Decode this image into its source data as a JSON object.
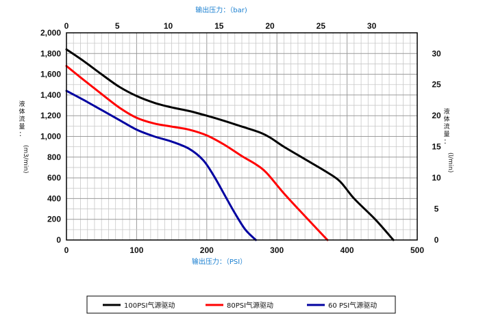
{
  "chart_data": {
    "type": "line",
    "title_top": "输出压力：（bar)",
    "xlabel": "输出压力：（PSI）",
    "ylabel_left": [
      "液",
      "体",
      "流",
      "量",
      "：",
      "(m3/min)"
    ],
    "ylabel_right": [
      "液",
      "体",
      "流",
      "量",
      "：",
      "(l/min)"
    ],
    "x_primary": {
      "unit": "PSI",
      "lim": [
        0,
        500
      ],
      "ticks": [
        "0",
        "100",
        "200",
        "300",
        "400",
        "500"
      ],
      "tick_values": [
        0,
        100,
        200,
        300,
        400,
        500
      ]
    },
    "x_secondary": {
      "unit": "bar",
      "lim": [
        0,
        34.47
      ],
      "ticks": [
        "0",
        "5",
        "10",
        "15",
        "20",
        "25",
        "30"
      ],
      "tick_values": [
        0,
        5,
        10,
        15,
        20,
        25,
        30
      ]
    },
    "y_primary": {
      "lim": [
        0,
        2000
      ],
      "ticks": [
        "0",
        "200",
        "400",
        "600",
        "800",
        "1,000",
        "1,200",
        "1,400",
        "1,600",
        "1,800",
        "2,000"
      ],
      "tick_values": [
        0,
        200,
        400,
        600,
        800,
        1000,
        1200,
        1400,
        1600,
        1800,
        2000
      ]
    },
    "y_secondary": {
      "lim": [
        0,
        33.33
      ],
      "ticks": [
        "0",
        "5",
        "10",
        "15",
        "20",
        "25",
        "30"
      ],
      "tick_values": [
        0,
        5,
        10,
        15,
        20,
        25,
        30
      ]
    },
    "grid": true,
    "legend_position": "bottom",
    "series": [
      {
        "name": "100PSI气源驱动",
        "color": "#000000",
        "x": [
          0,
          25,
          50,
          75,
          100,
          125,
          150,
          175,
          200,
          225,
          250,
          275,
          290,
          310,
          340,
          370,
          390,
          410,
          440,
          466
        ],
        "y": [
          1840,
          1725,
          1600,
          1480,
          1390,
          1325,
          1280,
          1245,
          1200,
          1150,
          1095,
          1040,
          990,
          900,
          780,
          660,
          565,
          400,
          200,
          0
        ]
      },
      {
        "name": "80PSI气源驱动",
        "color": "#ff0000",
        "x": [
          0,
          20,
          50,
          75,
          100,
          125,
          150,
          175,
          200,
          225,
          250,
          270,
          285,
          310,
          340,
          372
        ],
        "y": [
          1680,
          1570,
          1410,
          1280,
          1180,
          1125,
          1095,
          1065,
          1010,
          920,
          810,
          730,
          650,
          450,
          230,
          0
        ]
      },
      {
        "name": "60 PSI气源驱动",
        "color": "#0000a0",
        "x": [
          0,
          25,
          50,
          75,
          100,
          125,
          150,
          175,
          195,
          210,
          225,
          240,
          255,
          270
        ],
        "y": [
          1440,
          1350,
          1255,
          1160,
          1065,
          1000,
          950,
          880,
          770,
          620,
          440,
          260,
          100,
          0
        ]
      }
    ]
  }
}
